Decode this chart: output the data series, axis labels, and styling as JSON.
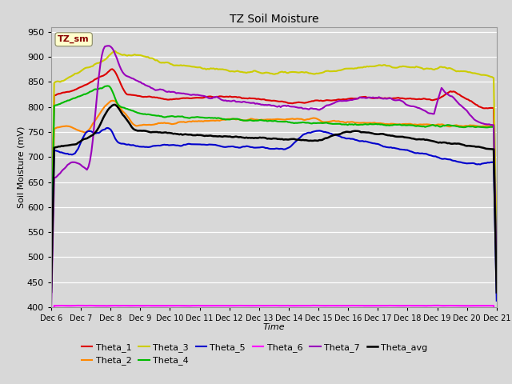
{
  "title": "TZ Soil Moisture",
  "xlabel": "Time",
  "ylabel": "Soil Moisture (mV)",
  "ylim": [
    400,
    960
  ],
  "yticks": [
    400,
    450,
    500,
    550,
    600,
    650,
    700,
    750,
    800,
    850,
    900,
    950
  ],
  "bg_color": "#d8d8d8",
  "label_box": "TZ_sm",
  "label_box_bg": "#ffffcc",
  "label_box_fg": "#880000",
  "series_colors": {
    "Theta_1": "#dd0000",
    "Theta_2": "#ff8800",
    "Theta_3": "#cccc00",
    "Theta_4": "#00bb00",
    "Theta_5": "#0000cc",
    "Theta_6": "#ff00ff",
    "Theta_7": "#9900bb",
    "Theta_avg": "#000000"
  },
  "xtick_labels": [
    "Dec 6",
    "Dec 7",
    "Dec 8",
    "Dec 9",
    "Dec 10",
    "Dec 11",
    "Dec 12",
    "Dec 13",
    "Dec 14",
    "Dec 15",
    "Dec 16",
    "Dec 17",
    "Dec 18",
    "Dec 19",
    "Dec 20",
    "Dec 21"
  ],
  "legend_row1": [
    "Theta_1",
    "Theta_2",
    "Theta_3",
    "Theta_4",
    "Theta_5",
    "Theta_6"
  ],
  "legend_row2": [
    "Theta_7",
    "Theta_avg"
  ],
  "n_points": 300
}
